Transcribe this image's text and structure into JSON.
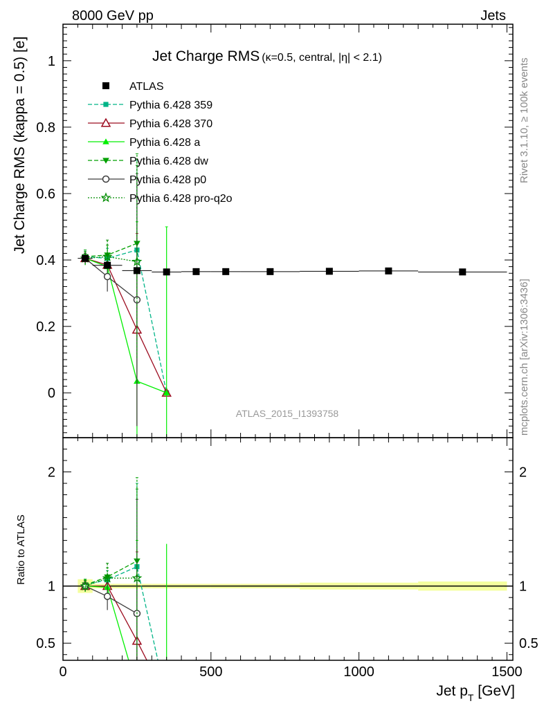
{
  "header": {
    "left": "8000 GeV pp",
    "right": "Jets"
  },
  "side": {
    "rivet": "Rivet 3.1.10, ≥ 100k events",
    "mcplots": "mcplots.cern.ch [arXiv:1306:3436]"
  },
  "chart_data": {
    "type": "scatter",
    "title_main": "Jet Charge RMS",
    "title_sub": "(κ=0.5, central, |η| < 2.1)",
    "watermark": "ATLAS_2015_I1393758",
    "xlabel": "Jet p",
    "xlabel_sub": "T",
    "xlabel_unit": " [GeV]",
    "ylabel": "Jet Charge RMS (kappa = 0.5) [e]",
    "ratio_ylabel": "Ratio to ATLAS",
    "xlim": [
      0,
      1520
    ],
    "ylim": [
      -0.135,
      1.11
    ],
    "ratio_ylim": [
      0.35,
      2.3
    ],
    "x_ticks": [
      "0",
      "500",
      "1000",
      "1500"
    ],
    "x_tick_values": [
      0,
      500,
      1000,
      1500
    ],
    "y_ticks": [
      "0",
      "0.2",
      "0.4",
      "0.6",
      "0.8",
      "1"
    ],
    "y_tick_values": [
      0,
      0.2,
      0.4,
      0.6,
      0.8,
      1.0
    ],
    "ratio_ticks": [
      "0.5",
      "1",
      "2"
    ],
    "ratio_tick_values": [
      0.5,
      1,
      2
    ],
    "data": {
      "name": "ATLAS",
      "x": [
        75,
        150,
        250,
        350,
        450,
        550,
        700,
        900,
        1100,
        1350
      ],
      "xerr": [
        25,
        50,
        50,
        50,
        50,
        50,
        100,
        100,
        100,
        150
      ],
      "y": [
        0.405,
        0.384,
        0.368,
        0.364,
        0.365,
        0.365,
        0.365,
        0.366,
        0.367,
        0.364
      ],
      "ratio_band": [
        0.06,
        0.02,
        0.02,
        0.02,
        0.02,
        0.02,
        0.02,
        0.03,
        0.03,
        0.04
      ]
    },
    "series": [
      {
        "name": "Pythia 6.428 359",
        "color": "#00b487",
        "dash": "6,3",
        "marker": "square-filled",
        "x": [
          75,
          150,
          250,
          350
        ],
        "y": [
          0.41,
          0.405,
          0.43,
          0.0
        ],
        "err": [
          0.02,
          0.03,
          0.27,
          0.0
        ],
        "ratio": [
          1.01,
          1.055,
          1.17,
          0.0
        ],
        "ratio_err": [
          0.05,
          0.08,
          0.73,
          0.0
        ]
      },
      {
        "name": "Pythia 6.428 370",
        "color": "#9b0a1e",
        "dash": "",
        "marker": "triangle-open",
        "x": [
          75,
          150,
          250,
          350
        ],
        "y": [
          0.405,
          0.385,
          0.19,
          0.0
        ],
        "err": [
          0.015,
          0.03,
          0.29,
          0.0
        ],
        "ratio": [
          1.0,
          1.0,
          0.52,
          0.0
        ],
        "ratio_err": [
          0.04,
          0.08,
          0.78,
          0.0
        ]
      },
      {
        "name": "Pythia 6.428 a",
        "color": "#00ef00",
        "dash": "",
        "marker": "triangle-filled",
        "x": [
          75,
          150,
          250,
          350
        ],
        "y": [
          0.405,
          0.38,
          0.035,
          0.0
        ],
        "err": [
          0.02,
          0.04,
          0.48,
          0.5
        ],
        "ratio": [
          1.0,
          0.99,
          0.1,
          0.0
        ],
        "ratio_err": [
          0.05,
          0.1,
          1.3,
          1.37
        ]
      },
      {
        "name": "Pythia 6.428 dw",
        "color": "#00a000",
        "dash": "6,3",
        "marker": "triangle-down-filled",
        "x": [
          75,
          150,
          250
        ],
        "y": [
          0.41,
          0.415,
          0.45
        ],
        "err": [
          0.02,
          0.03,
          0.27
        ],
        "ratio": [
          1.01,
          1.08,
          1.22
        ],
        "ratio_err": [
          0.05,
          0.08,
          0.73
        ]
      },
      {
        "name": "Pythia 6.428 p0",
        "color": "#3c3c3c",
        "dash": "",
        "marker": "circle-open",
        "x": [
          75,
          150,
          250
        ],
        "y": [
          0.405,
          0.35,
          0.28
        ],
        "err": [
          0.015,
          0.045,
          0.38
        ],
        "ratio": [
          1.0,
          0.91,
          0.76
        ],
        "ratio_err": [
          0.04,
          0.12,
          1.0
        ]
      },
      {
        "name": "Pythia 6.428 pro-q2o",
        "color": "#008c00",
        "dash": "2,2",
        "marker": "star-open",
        "x": [
          75,
          150,
          250
        ],
        "y": [
          0.405,
          0.41,
          0.395
        ],
        "err": [
          0.02,
          0.05,
          0.29
        ],
        "ratio": [
          1.0,
          1.07,
          1.07
        ],
        "ratio_err": [
          0.05,
          0.13,
          0.78
        ]
      }
    ]
  }
}
